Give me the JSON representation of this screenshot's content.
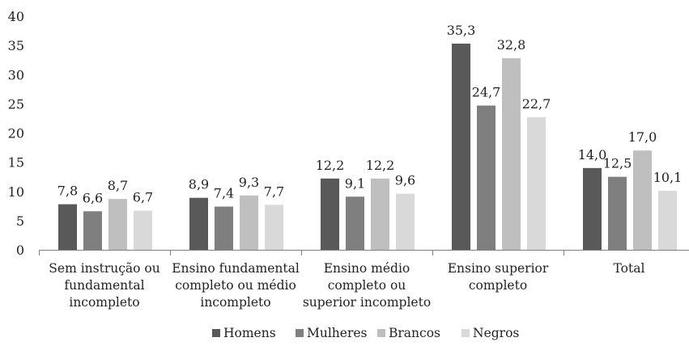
{
  "chart_data": {
    "type": "bar",
    "title": "",
    "xlabel": "",
    "ylabel": "",
    "ylim": [
      0,
      40
    ],
    "yticks": [
      "0",
      "5",
      "10",
      "15",
      "20",
      "25",
      "30",
      "35",
      "40"
    ],
    "grid": false,
    "legend_position": "bottom",
    "categories": [
      [
        "Sem instrução ou",
        "fundamental",
        "incompleto"
      ],
      [
        "Ensino fundamental",
        "completo ou médio",
        "incompleto"
      ],
      [
        "Ensino médio",
        "completo ou",
        "superior incompleto"
      ],
      [
        "Ensino superior",
        "completo"
      ],
      [
        "Total"
      ]
    ],
    "series": [
      {
        "name": "Homens",
        "color": "#595959",
        "values": [
          7.8,
          8.9,
          12.2,
          35.3,
          14.0
        ],
        "labels": [
          "7,8",
          "8,9",
          "12,2",
          "35,3",
          "14,0"
        ]
      },
      {
        "name": "Mulheres",
        "color": "#7f7f7f",
        "values": [
          6.6,
          7.4,
          9.1,
          24.7,
          12.5
        ],
        "labels": [
          "6,6",
          "7,4",
          "9,1",
          "24,7",
          "12,5"
        ]
      },
      {
        "name": "Brancos",
        "color": "#bfbfbf",
        "values": [
          8.7,
          9.3,
          12.2,
          32.8,
          17.0
        ],
        "labels": [
          "8,7",
          "9,3",
          "12,2",
          "32,8",
          "17,0"
        ]
      },
      {
        "name": "Negros",
        "color": "#d9d9d9",
        "values": [
          6.7,
          7.7,
          9.6,
          22.7,
          10.1
        ],
        "labels": [
          "6,7",
          "7,7",
          "9,6",
          "22,7",
          "10,1"
        ]
      }
    ]
  }
}
